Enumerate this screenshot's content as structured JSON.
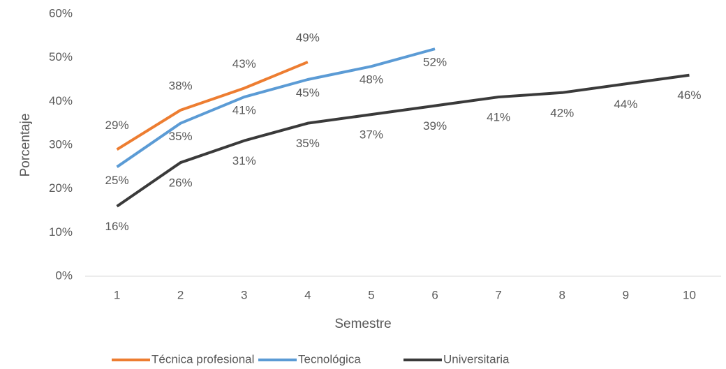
{
  "chart_data": {
    "type": "line",
    "categories": [
      "1",
      "2",
      "3",
      "4",
      "5",
      "6",
      "7",
      "8",
      "9",
      "10"
    ],
    "x_label": "Semestre",
    "y_label": "Porcentaje",
    "series": [
      {
        "name": "Técnica profesional",
        "color": "#ed7d31",
        "values": [
          29,
          38,
          43,
          49,
          null,
          null,
          null,
          null,
          null,
          null
        ],
        "value_labels": [
          "29%",
          "38%",
          "43%",
          "49%",
          null,
          null,
          null,
          null,
          null,
          null
        ]
      },
      {
        "name": "Tecnológica",
        "color": "#5b9bd5",
        "values": [
          25,
          35,
          41,
          45,
          48,
          52,
          null,
          null,
          null,
          null
        ],
        "value_labels": [
          "25%",
          "35%",
          "41%",
          "45%",
          "48%",
          "52%",
          null,
          null,
          null,
          null
        ]
      },
      {
        "name": "Universitaria",
        "color": "#3a3a3a",
        "values": [
          16,
          26,
          31,
          35,
          37,
          39,
          41,
          42,
          44,
          46
        ],
        "value_labels": [
          "16%",
          "26%",
          "31%",
          "35%",
          "37%",
          "39%",
          "41%",
          "42%",
          "44%",
          "46%"
        ]
      }
    ],
    "ylim": [
      0,
      60
    ],
    "yticks": [
      {
        "value": 0,
        "label": "0%"
      },
      {
        "value": 10,
        "label": "10%"
      },
      {
        "value": 20,
        "label": "20%"
      },
      {
        "value": 30,
        "label": "30%"
      },
      {
        "value": 40,
        "label": "40%"
      },
      {
        "value": 50,
        "label": "50%"
      },
      {
        "value": 60,
        "label": "60%"
      }
    ],
    "grid": false,
    "legend": "bottom"
  }
}
